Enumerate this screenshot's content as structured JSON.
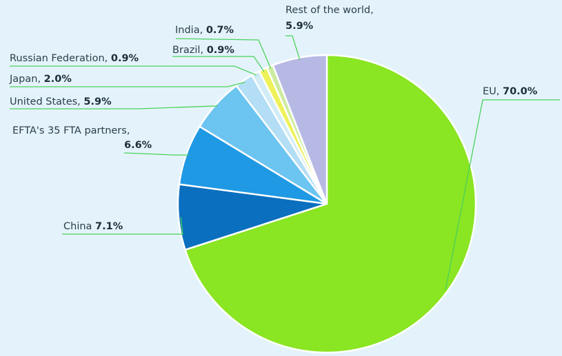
{
  "chart_data": {
    "type": "pie",
    "title": "",
    "start": "12 o'clock, clockwise",
    "slices": [
      {
        "label": "EU,",
        "value": 70.0,
        "value_text": "70.0%",
        "color": "#8ae522"
      },
      {
        "label": "China",
        "value": 7.1,
        "value_text": "7.1%",
        "color": "#0a6fbe"
      },
      {
        "label": "EFTA's 35 FTA partners,",
        "value": 6.6,
        "value_text": "6.6%",
        "color": "#1f99e3"
      },
      {
        "label": "United States,",
        "value": 5.9,
        "value_text": "5.9%",
        "color": "#6cc4f1"
      },
      {
        "label": "Japan,",
        "value": 2.0,
        "value_text": "2.0%",
        "color": "#b3def5"
      },
      {
        "label": "Russian Federation,",
        "value": 0.9,
        "value_text": "0.9%",
        "color": "#d2ecf7"
      },
      {
        "label": "Brazil,",
        "value": 0.9,
        "value_text": "0.9%",
        "color": "#eef25a"
      },
      {
        "label": "India,",
        "value": 0.7,
        "value_text": "0.7%",
        "color": "#cdeba0"
      },
      {
        "label": "Rest of the world,",
        "value": 5.9,
        "value_text": "5.9%",
        "color": "#b7b9e5"
      }
    ],
    "leader_color": "#49d15a",
    "background": "#e4f3fb"
  }
}
